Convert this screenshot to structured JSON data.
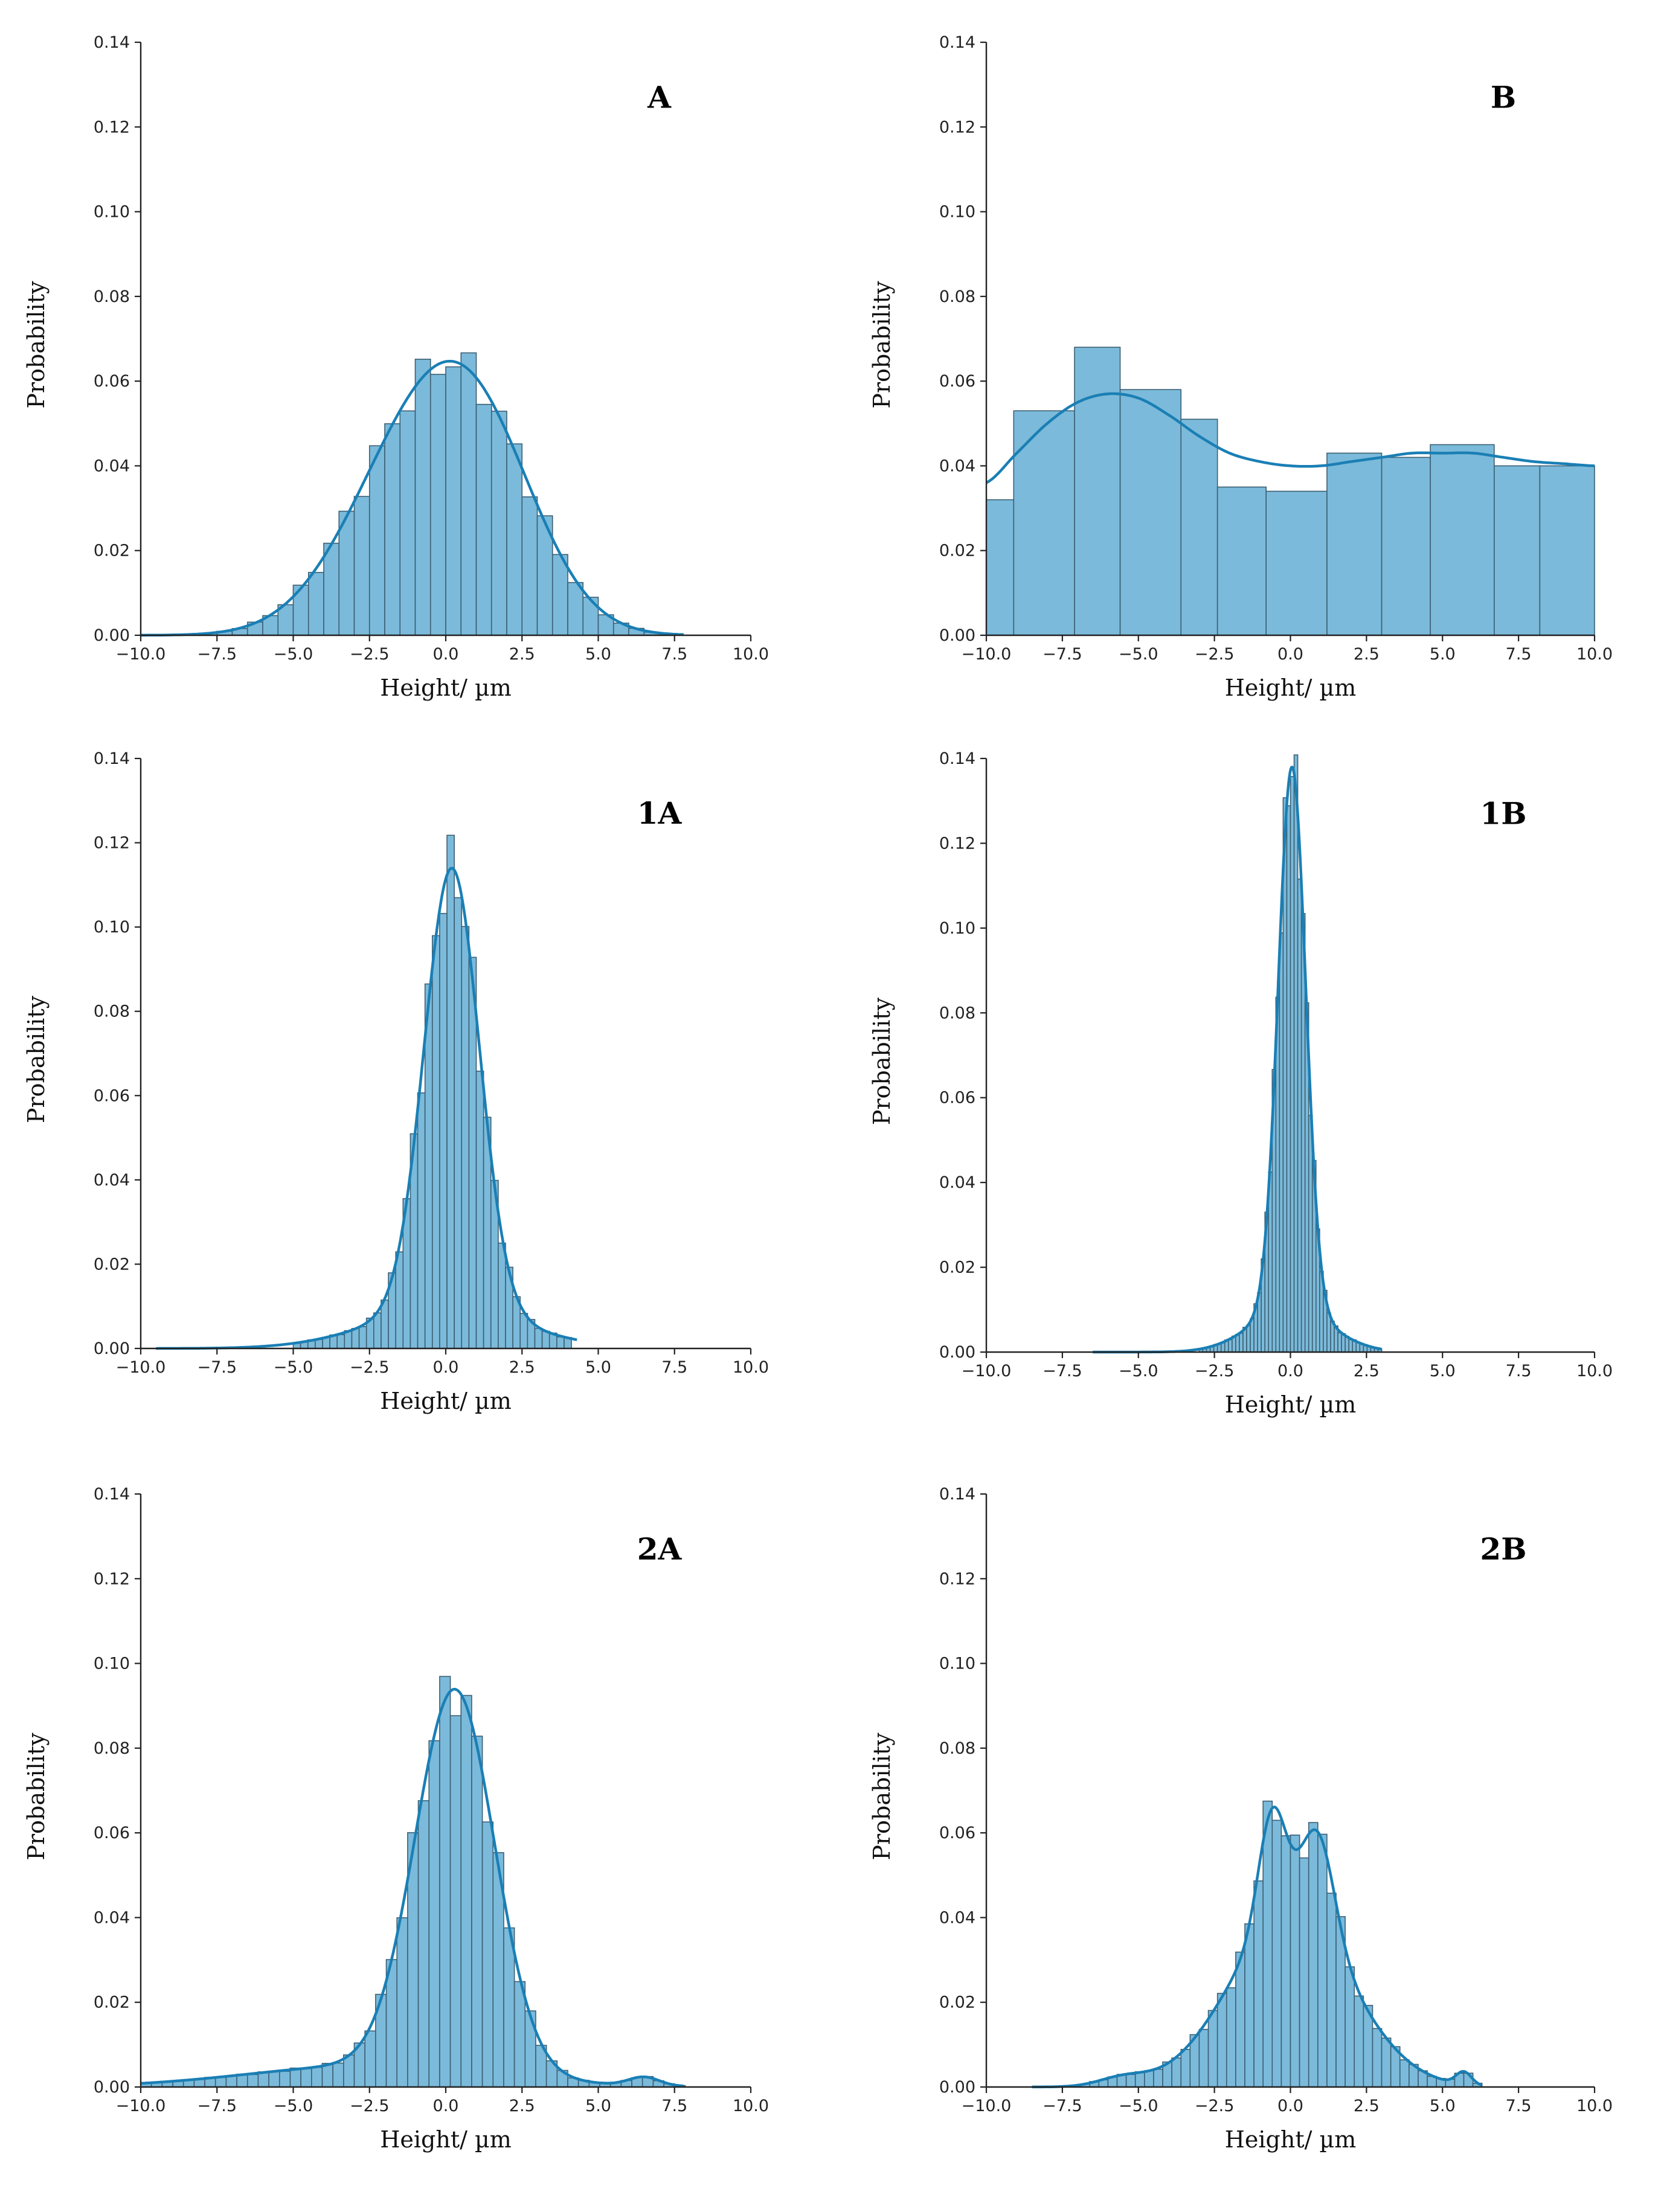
{
  "chart_data": [
    {
      "type": "bar",
      "panel_label": "A",
      "xlabel": "Height/ µm",
      "ylabel": "Probability",
      "xlim": [
        -10,
        10
      ],
      "ylim": [
        0,
        0.14
      ],
      "xticks": [
        "−10.0",
        "−7.5",
        "−5.0",
        "−2.5",
        "0.0",
        "2.5",
        "5.0",
        "7.5",
        "10.0"
      ],
      "yticks": [
        "0.00",
        "0.02",
        "0.04",
        "0.06",
        "0.08",
        "0.10",
        "0.12",
        "0.14"
      ],
      "distribution": {
        "mode": "sum",
        "components": [
          {
            "mu": -1.3,
            "sigma": 2.2,
            "amp": 0.036
          },
          {
            "mu": 1.1,
            "sigma": 2.0,
            "amp": 0.04
          }
        ]
      },
      "bins": {
        "start": -9.5,
        "end": 7.5,
        "width": 0.5
      },
      "kde_range": [
        -10,
        7.8
      ]
    },
    {
      "type": "bar",
      "panel_label": "B",
      "xlabel": "Height/ µm",
      "ylabel": "Probability",
      "xlim": [
        -10,
        10
      ],
      "ylim": [
        0,
        0.14
      ],
      "xticks": [
        "−10.0",
        "−7.5",
        "−5.0",
        "−2.5",
        "0.0",
        "2.5",
        "5.0",
        "7.5",
        "10.0"
      ],
      "yticks": [
        "0.00",
        "0.02",
        "0.04",
        "0.06",
        "0.08",
        "0.10",
        "0.12",
        "0.14"
      ],
      "bin_edges": [
        -10.0,
        -9.1,
        -7.1,
        -5.6,
        -3.6,
        -2.4,
        -0.8,
        1.2,
        3.0,
        4.6,
        6.7,
        8.2,
        10.0
      ],
      "values": [
        0.032,
        0.053,
        0.068,
        0.058,
        0.051,
        0.035,
        0.034,
        0.043,
        0.042,
        0.045,
        0.04,
        0.04
      ],
      "kde_points": [
        [
          -10,
          0.036
        ],
        [
          -9,
          0.043
        ],
        [
          -8,
          0.05
        ],
        [
          -7,
          0.055
        ],
        [
          -6,
          0.057
        ],
        [
          -5,
          0.056
        ],
        [
          -4,
          0.052
        ],
        [
          -3,
          0.047
        ],
        [
          -2,
          0.043
        ],
        [
          -1,
          0.041
        ],
        [
          0,
          0.04
        ],
        [
          1,
          0.04
        ],
        [
          2,
          0.041
        ],
        [
          3,
          0.042
        ],
        [
          4,
          0.043
        ],
        [
          5,
          0.043
        ],
        [
          6,
          0.043
        ],
        [
          7,
          0.042
        ],
        [
          8,
          0.041
        ],
        [
          9,
          0.0405
        ],
        [
          10,
          0.04
        ]
      ]
    },
    {
      "type": "bar",
      "panel_label": "1A",
      "xlabel": "Height/ µm",
      "ylabel": "Probability",
      "xlim": [
        -10,
        10
      ],
      "ylim": [
        0,
        0.14
      ],
      "xticks": [
        "−10.0",
        "−7.5",
        "−5.0",
        "−2.5",
        "0.0",
        "2.5",
        "5.0",
        "7.5",
        "10.0"
      ],
      "yticks": [
        "0.00",
        "0.02",
        "0.04",
        "0.06",
        "0.08",
        "0.10",
        "0.12",
        "0.14"
      ],
      "distribution": {
        "mode": "sum",
        "components": [
          {
            "mu": 0.2,
            "sigma": 0.9,
            "amp": 0.105
          },
          {
            "mu": 0.0,
            "sigma": 2.5,
            "amp": 0.009
          }
        ]
      },
      "bins": {
        "start": -5.0,
        "end": 4.2,
        "width": 0.24
      },
      "kde_range": [
        -9.5,
        4.3
      ]
    },
    {
      "type": "bar",
      "panel_label": "1B",
      "xlabel": "Height/ µm",
      "ylabel": "Probability",
      "xlim": [
        -10,
        10
      ],
      "ylim": [
        0,
        0.14
      ],
      "xticks": [
        "−10.0",
        "−7.5",
        "−5.0",
        "−2.5",
        "0.0",
        "2.5",
        "5.0",
        "7.5",
        "10.0"
      ],
      "yticks": [
        "0.00",
        "0.02",
        "0.04",
        "0.06",
        "0.08",
        "0.10",
        "0.12",
        "0.14"
      ],
      "distribution": {
        "mode": "sum",
        "components": [
          {
            "mu": 0.05,
            "sigma": 0.45,
            "amp": 0.128
          },
          {
            "mu": 0.0,
            "sigma": 1.3,
            "amp": 0.01
          }
        ]
      },
      "bins": {
        "start": -3.0,
        "end": 3.0,
        "width": 0.12
      },
      "kde_range": [
        -6.5,
        3.0
      ]
    },
    {
      "type": "bar",
      "panel_label": "2A",
      "xlabel": "Height/ µm",
      "ylabel": "Probability",
      "xlim": [
        -10,
        10
      ],
      "ylim": [
        0,
        0.14
      ],
      "xticks": [
        "−10.0",
        "−7.5",
        "−5.0",
        "−2.5",
        "0.0",
        "2.5",
        "5.0",
        "7.5",
        "10.0"
      ],
      "yticks": [
        "0.00",
        "0.02",
        "0.04",
        "0.06",
        "0.08",
        "0.10",
        "0.12",
        "0.14"
      ],
      "distribution": {
        "mode": "sum",
        "components": [
          {
            "mu": 0.3,
            "sigma": 1.3,
            "amp": 0.09
          },
          {
            "mu": -2.5,
            "sigma": 4.0,
            "amp": 0.005
          },
          {
            "mu": 6.5,
            "sigma": 0.5,
            "amp": 0.002
          }
        ]
      },
      "bins": {
        "start": -10.0,
        "end": 7.8,
        "width": 0.35
      },
      "kde_range": [
        -10,
        7.8
      ]
    },
    {
      "type": "bar",
      "panel_label": "2B",
      "xlabel": "Height/ µm",
      "ylabel": "Probability",
      "xlim": [
        -10,
        10
      ],
      "ylim": [
        0,
        0.14
      ],
      "xticks": [
        "−10.0",
        "−7.5",
        "−5.0",
        "−2.5",
        "0.0",
        "2.5",
        "5.0",
        "7.5",
        "10.0"
      ],
      "yticks": [
        "0.00",
        "0.02",
        "0.04",
        "0.06",
        "0.08",
        "0.10",
        "0.12",
        "0.14"
      ],
      "distribution": {
        "mode": "sum",
        "components": [
          {
            "mu": 0.0,
            "sigma": 2.0,
            "amp": 0.04
          },
          {
            "mu": -0.6,
            "sigma": 0.45,
            "amp": 0.027
          },
          {
            "mu": 0.9,
            "sigma": 0.55,
            "amp": 0.024
          },
          {
            "mu": -5.5,
            "sigma": 0.8,
            "amp": 0.002
          },
          {
            "mu": 5.7,
            "sigma": 0.25,
            "amp": 0.003
          }
        ]
      },
      "bins": {
        "start": -9.0,
        "end": 6.2,
        "width": 0.3
      },
      "kde_range": [
        -8.5,
        6.3
      ]
    }
  ]
}
